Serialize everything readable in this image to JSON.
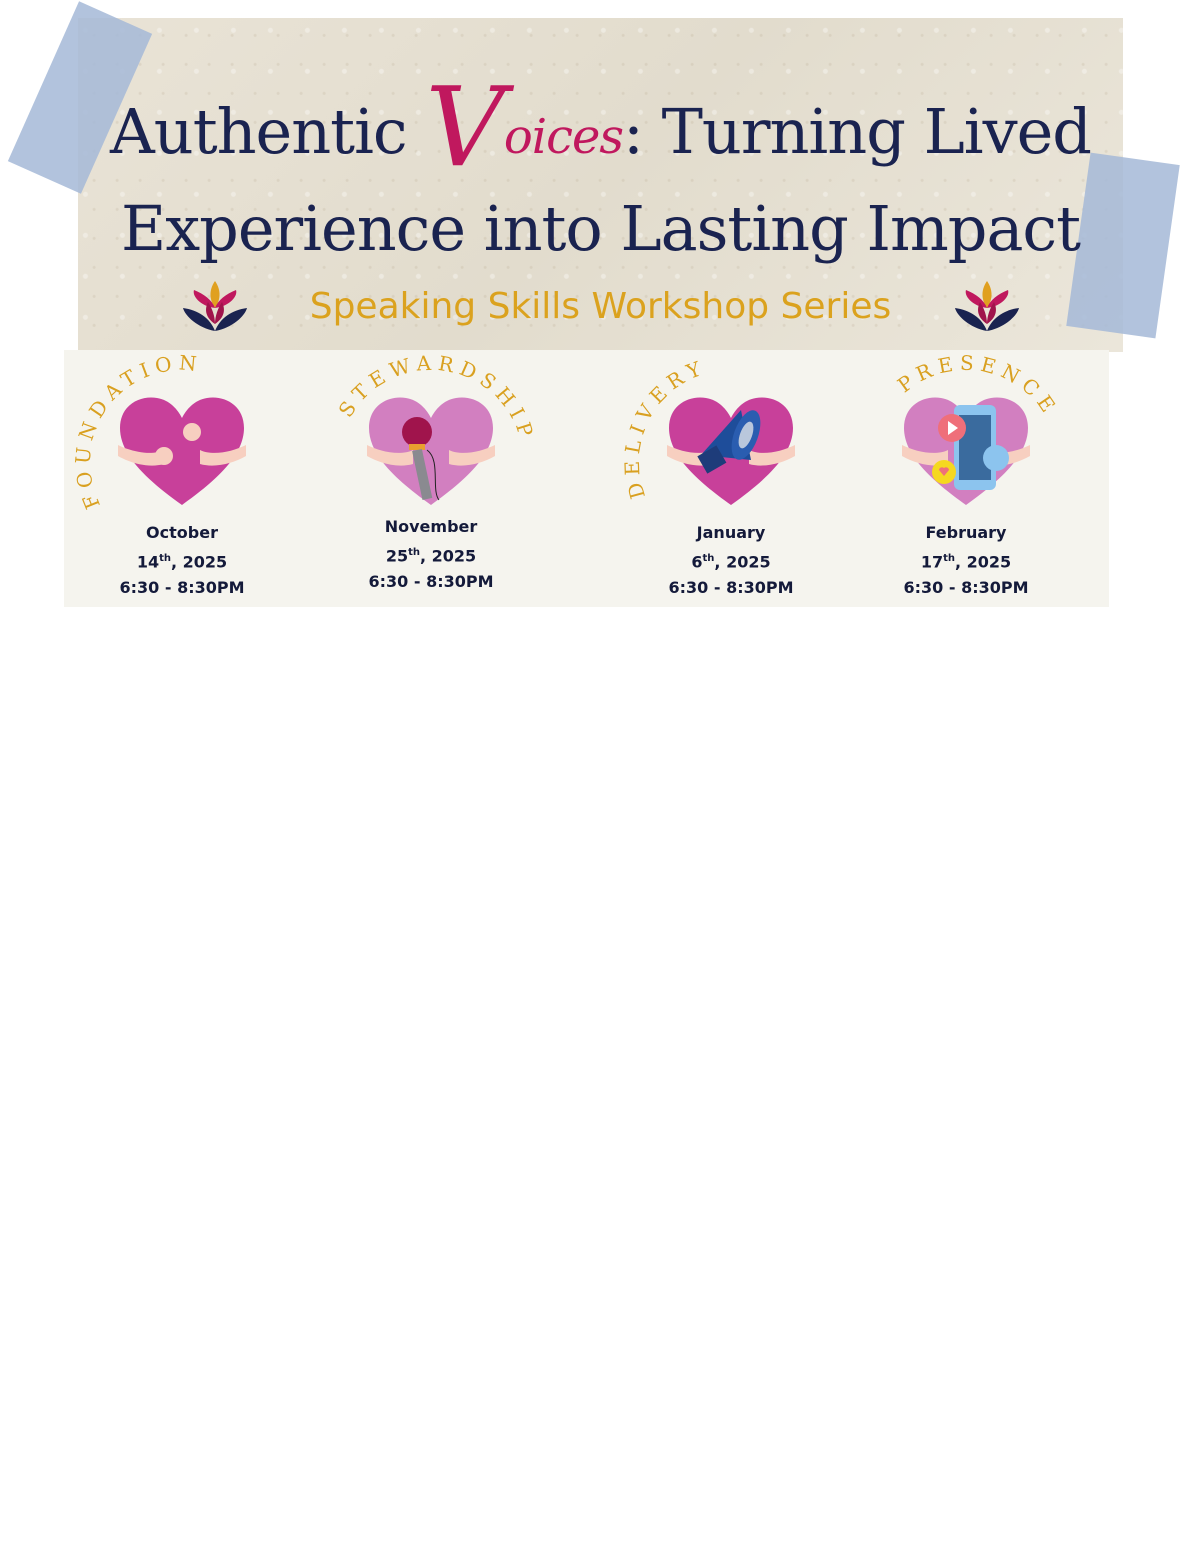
{
  "header": {
    "title_part1": "Authentic ",
    "title_script_initial": "V",
    "title_script_rest": "oices",
    "title_part2": ": Turning Lived",
    "title_line2": "Experience into Lasting Impact",
    "subtitle": "Speaking Skills Workshop Series"
  },
  "sessions": [
    {
      "theme": "FOUNDATION",
      "month": "October",
      "day": "14",
      "suffix": "th",
      "year": ", 2025",
      "time": "6:30 - 8:30PM",
      "icon": "hugging-heart-icon"
    },
    {
      "theme": "STEWARDSHIP",
      "month": "November",
      "day": "25",
      "suffix": "th",
      "year": ", 2025",
      "time": "6:30 - 8:30PM",
      "icon": "heart-microphone-icon"
    },
    {
      "theme": "DELIVERY",
      "month": "January",
      "day": "6",
      "suffix": "th",
      "year": ", 2025",
      "time": "6:30 - 8:30PM",
      "icon": "heart-megaphone-icon"
    },
    {
      "theme": "PRESENCE",
      "month": "February",
      "day": "17",
      "suffix": "th",
      "year": ", 2025",
      "time": "6:30 - 8:30PM",
      "icon": "heart-phone-icon"
    }
  ],
  "colors": {
    "navy": "#1a2350",
    "accent_pink": "#c0185e",
    "gold": "#dba21e",
    "heart": "#c8409a",
    "heart_light": "#d27fc0",
    "panel": "#f5f4ee"
  }
}
